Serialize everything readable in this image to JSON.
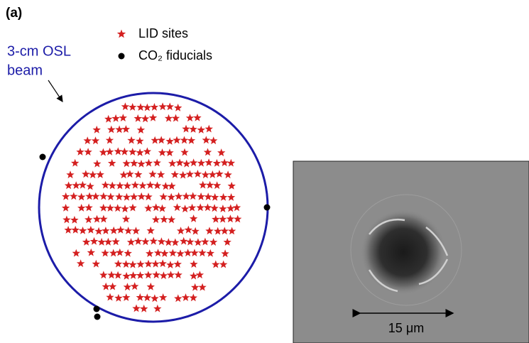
{
  "panel_label": "(a)",
  "legend": {
    "items": [
      "LID sites",
      "CO₂ fiducials"
    ]
  },
  "beam_label": {
    "lines": [
      "3-cm OSL",
      "beam"
    ]
  },
  "micrograph": {
    "scale_label": "15 μm"
  }
}
